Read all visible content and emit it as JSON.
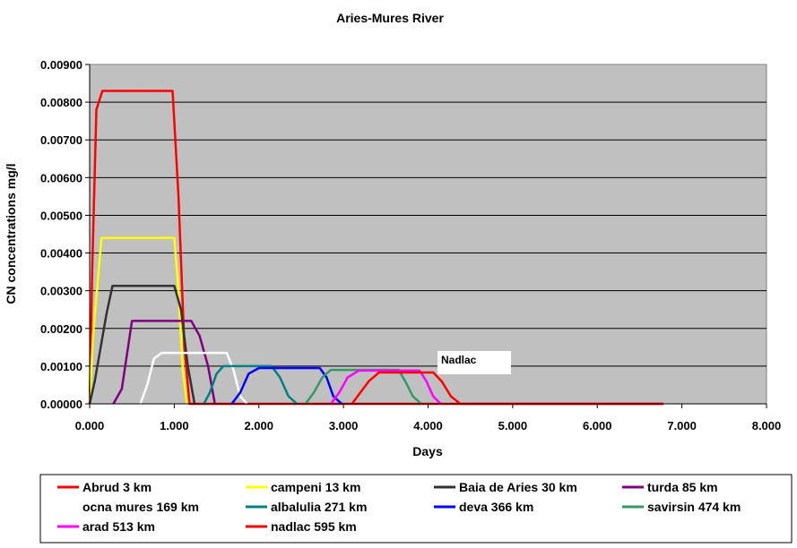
{
  "chart_data": {
    "type": "line",
    "title": "Aries-Mures River",
    "xlabel": "Days",
    "ylabel": "CN concentrations mg/l",
    "xlim": [
      0,
      8
    ],
    "ylim": [
      0,
      0.009
    ],
    "x_ticks": [
      "0.000",
      "1.000",
      "2.000",
      "3.000",
      "4.000",
      "5.000",
      "6.000",
      "7.000",
      "8.000"
    ],
    "y_ticks": [
      "0.00000",
      "0.00100",
      "0.00200",
      "0.00300",
      "0.00400",
      "0.00500",
      "0.00600",
      "0.00700",
      "0.00800",
      "0.00900"
    ],
    "grid": "horizontal",
    "plot_background": "#c0c0c0",
    "legend_position": "bottom",
    "annotation": "Nadlac",
    "series": [
      {
        "name": "Abrud 3 km",
        "color": "#ff0000",
        "x": [
          0.0,
          0.03,
          0.08,
          0.15,
          0.98,
          1.05,
          1.12,
          1.18,
          6.78
        ],
        "y": [
          0.0,
          0.0035,
          0.0078,
          0.0083,
          0.0083,
          0.0055,
          0.0015,
          0.0,
          0.0
        ]
      },
      {
        "name": "campeni 13 km",
        "color": "#ffff00",
        "x": [
          0.0,
          0.04,
          0.14,
          1.0,
          1.05,
          1.1,
          1.15
        ],
        "y": [
          0.0,
          0.0018,
          0.0044,
          0.0044,
          0.003,
          0.0009,
          0.0
        ]
      },
      {
        "name": "Baia de Aries 30 km",
        "color": "#333333",
        "x": [
          0.0,
          0.06,
          0.2,
          0.27,
          1.0,
          1.08,
          1.16,
          1.24
        ],
        "y": [
          0.0,
          0.0006,
          0.0024,
          0.00313,
          0.00313,
          0.0025,
          0.001,
          0.0
        ]
      },
      {
        "name": "turda 85 km",
        "color": "#800080",
        "x": [
          0.28,
          0.38,
          0.5,
          1.2,
          1.3,
          1.4,
          1.48
        ],
        "y": [
          0.0,
          0.0004,
          0.0022,
          0.0022,
          0.0018,
          0.001,
          0.0
        ]
      },
      {
        "name": "ocna mures 169 km",
        "color": "#ffffff",
        "x": [
          0.6,
          0.68,
          0.76,
          0.85,
          1.62,
          1.7,
          1.78,
          1.86
        ],
        "y": [
          0.0,
          0.0005,
          0.0012,
          0.00135,
          0.00135,
          0.0009,
          0.0002,
          0.0
        ]
      },
      {
        "name": "albalulia 271 km",
        "color": "#008080",
        "x": [
          1.35,
          1.42,
          1.5,
          1.58,
          2.15,
          2.25,
          2.35,
          2.45
        ],
        "y": [
          0.0,
          0.0003,
          0.0008,
          0.001,
          0.001,
          0.0007,
          0.0002,
          0.0
        ]
      },
      {
        "name": "deva 366 km",
        "color": "#0000ff",
        "x": [
          1.68,
          1.78,
          1.88,
          2.0,
          2.72,
          2.8,
          2.88,
          2.98
        ],
        "y": [
          0.0,
          0.0003,
          0.0008,
          0.00095,
          0.00095,
          0.0007,
          0.0002,
          0.0
        ]
      },
      {
        "name": "savirsin 474 km",
        "color": "#339966",
        "x": [
          2.55,
          2.65,
          2.75,
          2.85,
          3.65,
          3.73,
          3.82,
          3.92
        ],
        "y": [
          0.0,
          0.0003,
          0.0007,
          0.0009,
          0.0009,
          0.0006,
          0.0002,
          0.0
        ]
      },
      {
        "name": "arad 513 km",
        "color": "#ff00ff",
        "x": [
          2.85,
          2.95,
          3.05,
          3.18,
          3.9,
          3.98,
          4.06,
          4.15
        ],
        "y": [
          0.0,
          0.0003,
          0.0007,
          0.00088,
          0.00088,
          0.0006,
          0.0002,
          0.0
        ]
      },
      {
        "name": "nadlac 595 km",
        "color": "#ff0000",
        "x": [
          3.1,
          3.2,
          3.3,
          3.42,
          4.06,
          4.16,
          4.27,
          4.38,
          6.78
        ],
        "y": [
          0.0,
          0.0003,
          0.0006,
          0.00083,
          0.00083,
          0.0006,
          0.0002,
          0.0,
          0.0
        ]
      }
    ]
  }
}
